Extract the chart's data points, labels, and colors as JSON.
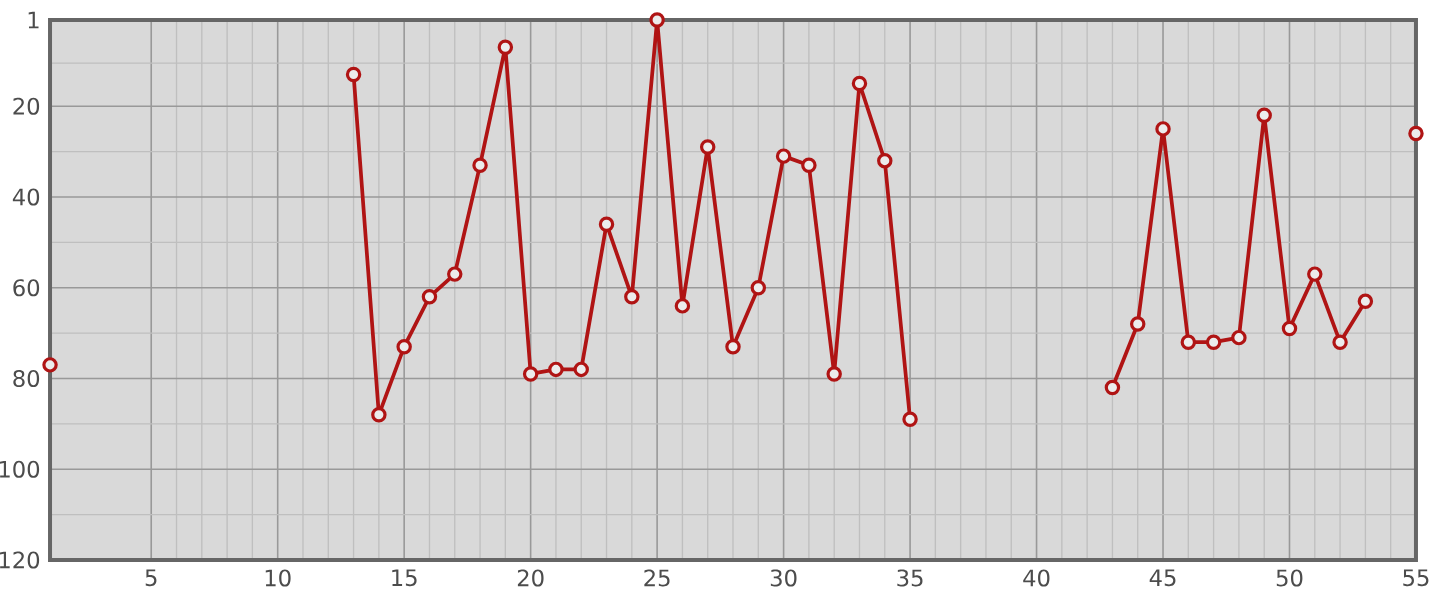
{
  "chart_data": {
    "type": "line",
    "x": [
      1,
      2,
      3,
      4,
      5,
      6,
      7,
      8,
      9,
      10,
      11,
      12,
      13,
      14,
      15,
      16,
      17,
      18,
      19,
      20,
      21,
      22,
      23,
      24,
      25,
      26,
      27,
      28,
      29,
      30,
      31,
      32,
      33,
      34,
      35,
      36,
      37,
      38,
      39,
      40,
      41,
      42,
      43,
      44,
      45,
      46,
      47,
      48,
      49,
      50,
      51,
      52,
      53,
      54,
      55
    ],
    "series": [
      {
        "color": "#b01414",
        "values": [
          77,
          null,
          null,
          null,
          null,
          null,
          null,
          null,
          null,
          null,
          null,
          null,
          13,
          88,
          73,
          62,
          57,
          33,
          7,
          79,
          78,
          78,
          46,
          62,
          1,
          64,
          29,
          73,
          60,
          31,
          33,
          79,
          15,
          32,
          89,
          null,
          null,
          null,
          null,
          null,
          null,
          null,
          82,
          68,
          25,
          72,
          72,
          71,
          22,
          69,
          57,
          72,
          63,
          null,
          26
        ]
      }
    ],
    "xlim": [
      1,
      55
    ],
    "xticks": [
      5,
      10,
      15,
      20,
      25,
      30,
      35,
      40,
      45,
      50,
      55
    ],
    "ylim": [
      120,
      1
    ],
    "yticks": [
      1,
      20,
      40,
      60,
      80,
      100,
      120
    ],
    "grid": true,
    "marker": "circle",
    "line_style": "solid"
  }
}
